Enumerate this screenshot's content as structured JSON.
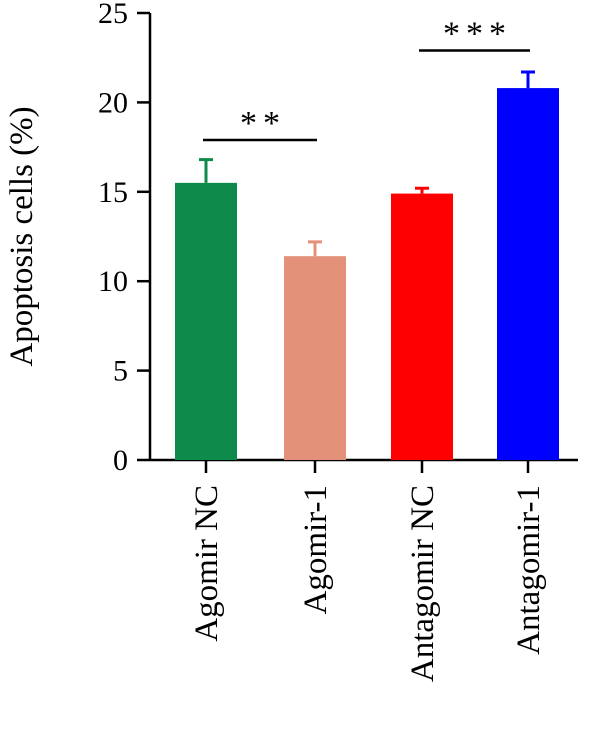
{
  "chart_data": {
    "type": "bar",
    "ylabel": "Apoptosis cells (%)",
    "ylim": [
      0,
      25
    ],
    "yticks": [
      0,
      5,
      10,
      15,
      20,
      25
    ],
    "categories": [
      "Agomir NC",
      "Agomir-1",
      "Antagomir NC",
      "Antagomir-1"
    ],
    "values": [
      15.5,
      11.4,
      14.9,
      20.8
    ],
    "errors": [
      1.3,
      0.8,
      0.3,
      0.9
    ],
    "colors": [
      "#0e8a4a",
      "#e4917a",
      "#ff0000",
      "#0000ff"
    ],
    "significance": [
      {
        "from": 0,
        "to": 1,
        "label": "**",
        "y": 17.9
      },
      {
        "from": 2,
        "to": 3,
        "label": "***",
        "y": 22.9
      }
    ],
    "grid": false
  }
}
